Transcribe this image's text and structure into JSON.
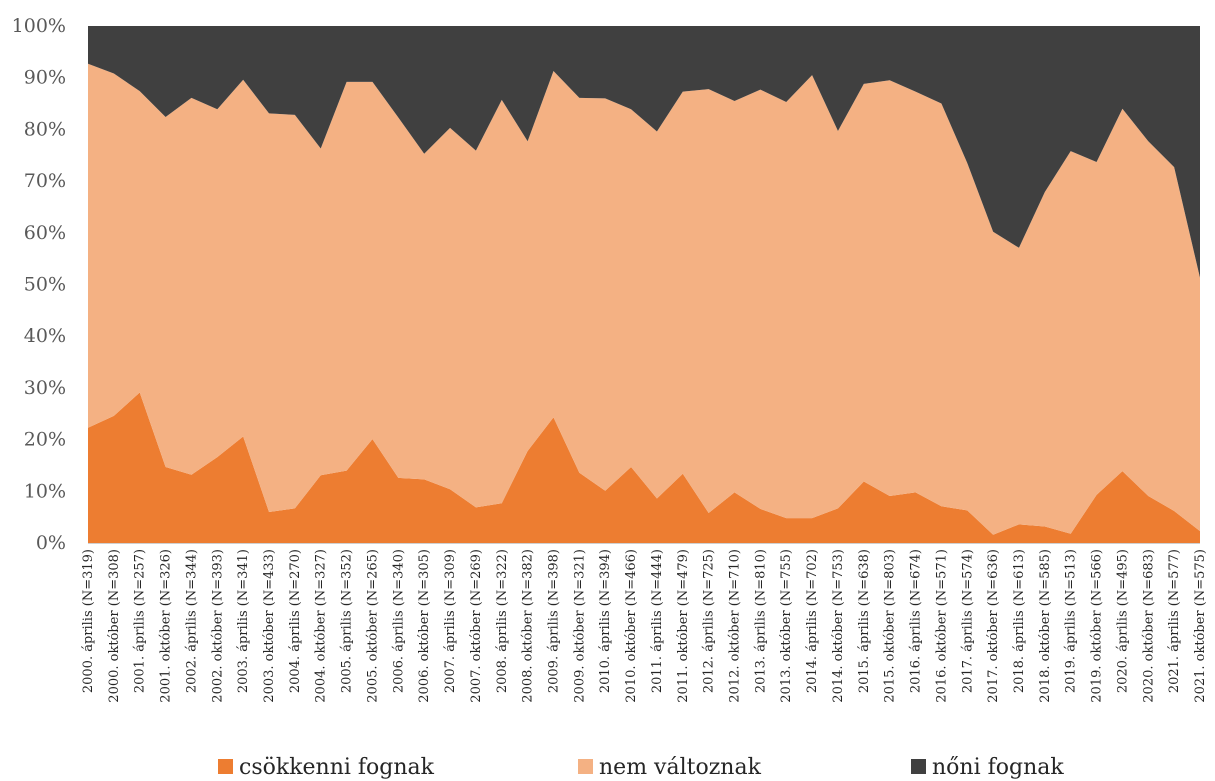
{
  "chart_data": {
    "type": "area",
    "stacked": true,
    "normalized": true,
    "ylim": [
      0,
      100
    ],
    "y_tick_labels": [
      "0%",
      "10%",
      "20%",
      "30%",
      "40%",
      "50%",
      "60%",
      "70%",
      "80%",
      "90%",
      "100%"
    ],
    "categories": [
      "2000. április (N=319)",
      "2000. október (N=308)",
      "2001. április (N=257)",
      "2001. október (N=326)",
      "2002. április (N=344)",
      "2002. október (N=393)",
      "2003. április (N=341)",
      "2003. október (N=433)",
      "2004. április (N=270)",
      "2004. október (N=327)",
      "2005. április (N=352)",
      "2005. október (N=265)",
      "2006. április (N=340)",
      "2006. október (N=305)",
      "2007. április (N=309)",
      "2007. október (N=269)",
      "2008. április (N=322)",
      "2008. október (N=382)",
      "2009. április (N=398)",
      "2009. október (N=321)",
      "2010. április (N=394)",
      "2010. október (N=466)",
      "2011. április (N=444)",
      "2011. október (N=479)",
      "2012. április (N=725)",
      "2012. október (N=710)",
      "2013. április (N=810)",
      "2013. október (N=755)",
      "2014. április (N=702)",
      "2014. október (N=753)",
      "2015. április (N=638)",
      "2015. október (N=803)",
      "2016. április (N=674)",
      "2016. október (N=571)",
      "2017. április (N=574)",
      "2017. október (N=636)",
      "2018. április (N=613)",
      "2018. október (N=585)",
      "2019. április (N=513)",
      "2019. október (N=566)",
      "2020. április (N=495)",
      "2020. október (N=683)",
      "2021. április (N=577)",
      "2021. október (N=575)"
    ],
    "series": [
      {
        "name": "csökkenni fognak",
        "color": "#ED7D31",
        "values": [
          22.3,
          24.6,
          29.1,
          14.7,
          13.2,
          16.6,
          20.6,
          6.0,
          6.7,
          13.1,
          14.0,
          20.1,
          12.6,
          12.3,
          10.4,
          6.9,
          7.7,
          17.8,
          24.3,
          13.6,
          10.1,
          14.7,
          8.6,
          13.4,
          5.8,
          9.8,
          6.6,
          4.8,
          4.8,
          6.7,
          11.9,
          9.1,
          9.8,
          7.1,
          6.3,
          1.6,
          3.6,
          3.2,
          1.8,
          9.3,
          13.9,
          9.1,
          6.2,
          2.3
        ]
      },
      {
        "name": "nem változnak",
        "color": "#F4B183",
        "values": [
          70.4,
          66.2,
          58.3,
          67.7,
          72.9,
          67.3,
          69.0,
          77.1,
          76.1,
          63.2,
          75.2,
          69.1,
          69.7,
          63.0,
          69.9,
          69.0,
          78.0,
          59.9,
          67.0,
          72.5,
          75.9,
          69.2,
          71.0,
          73.9,
          82.0,
          75.7,
          81.1,
          80.5,
          85.7,
          73.0,
          76.9,
          80.4,
          77.5,
          77.9,
          67.2,
          58.6,
          53.5,
          64.7,
          74.0,
          64.4,
          70.1,
          68.6,
          66.5,
          49.0
        ]
      },
      {
        "name": "nőni fognak",
        "color": "#404040",
        "values": [
          7.3,
          9.2,
          12.6,
          17.6,
          13.9,
          16.1,
          10.4,
          16.9,
          17.2,
          23.7,
          10.8,
          10.8,
          17.7,
          24.7,
          19.7,
          24.1,
          14.3,
          22.3,
          8.7,
          13.9,
          14.0,
          16.1,
          20.4,
          12.7,
          12.2,
          14.5,
          12.3,
          14.7,
          9.5,
          20.3,
          11.2,
          10.5,
          12.7,
          15.0,
          26.5,
          39.8,
          42.9,
          32.1,
          24.2,
          26.3,
          16.0,
          22.3,
          27.3,
          48.7
        ]
      }
    ],
    "legend_position": "bottom",
    "grid": false
  }
}
